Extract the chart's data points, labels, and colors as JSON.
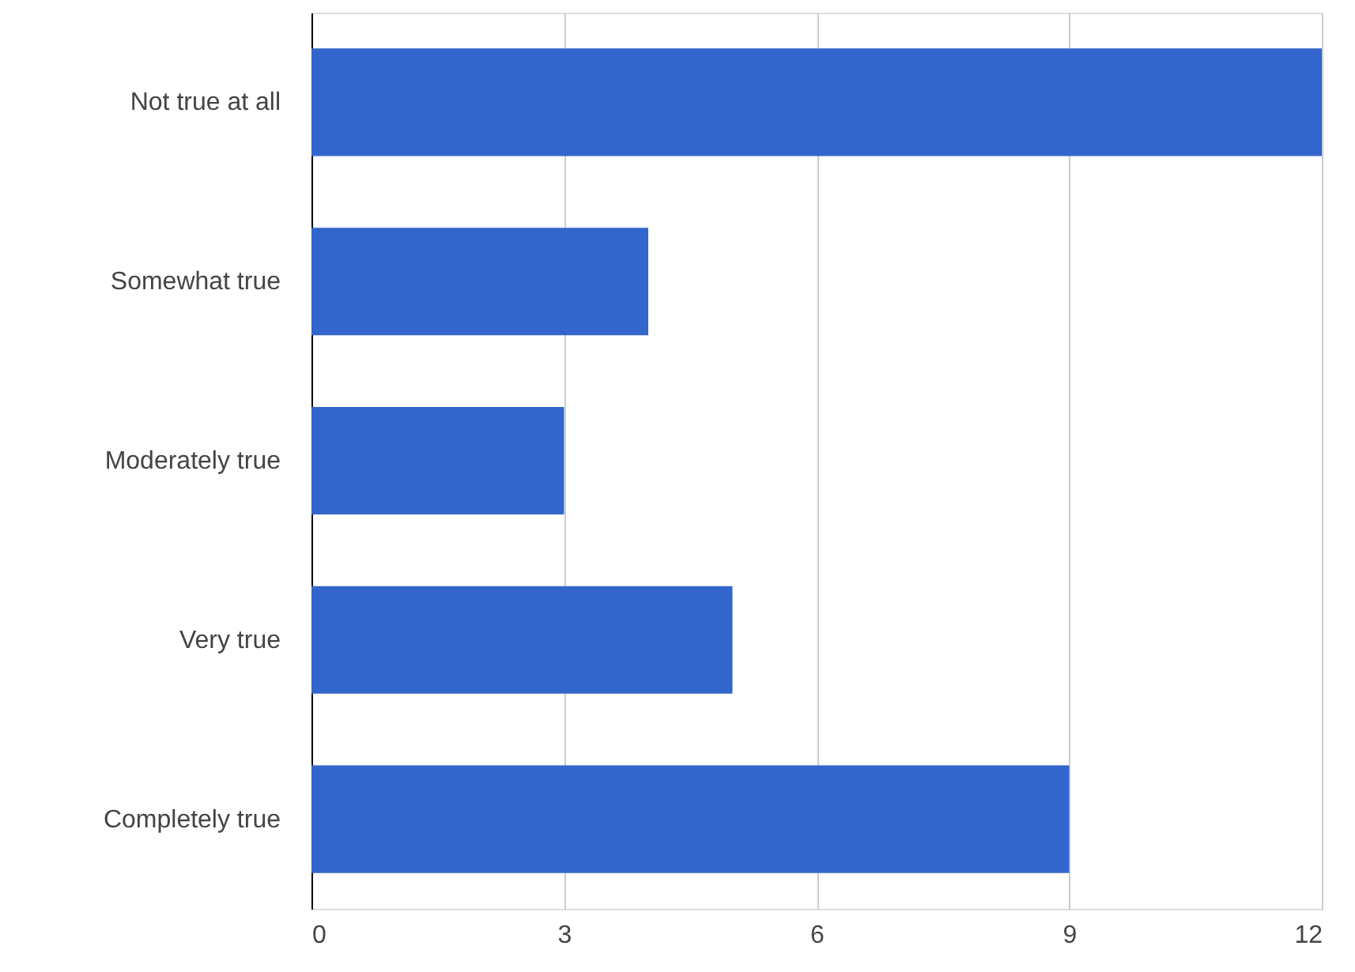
{
  "chart_data": {
    "type": "bar",
    "orientation": "horizontal",
    "categories": [
      "Not true at all",
      "Somewhat true",
      "Moderately true",
      "Very true",
      "Completely true"
    ],
    "values": [
      12,
      4,
      3,
      5,
      9
    ],
    "color": "#3366cc",
    "xlim": [
      0,
      12
    ],
    "xticks": [
      0,
      3,
      6,
      9,
      12
    ],
    "grid": "x"
  }
}
